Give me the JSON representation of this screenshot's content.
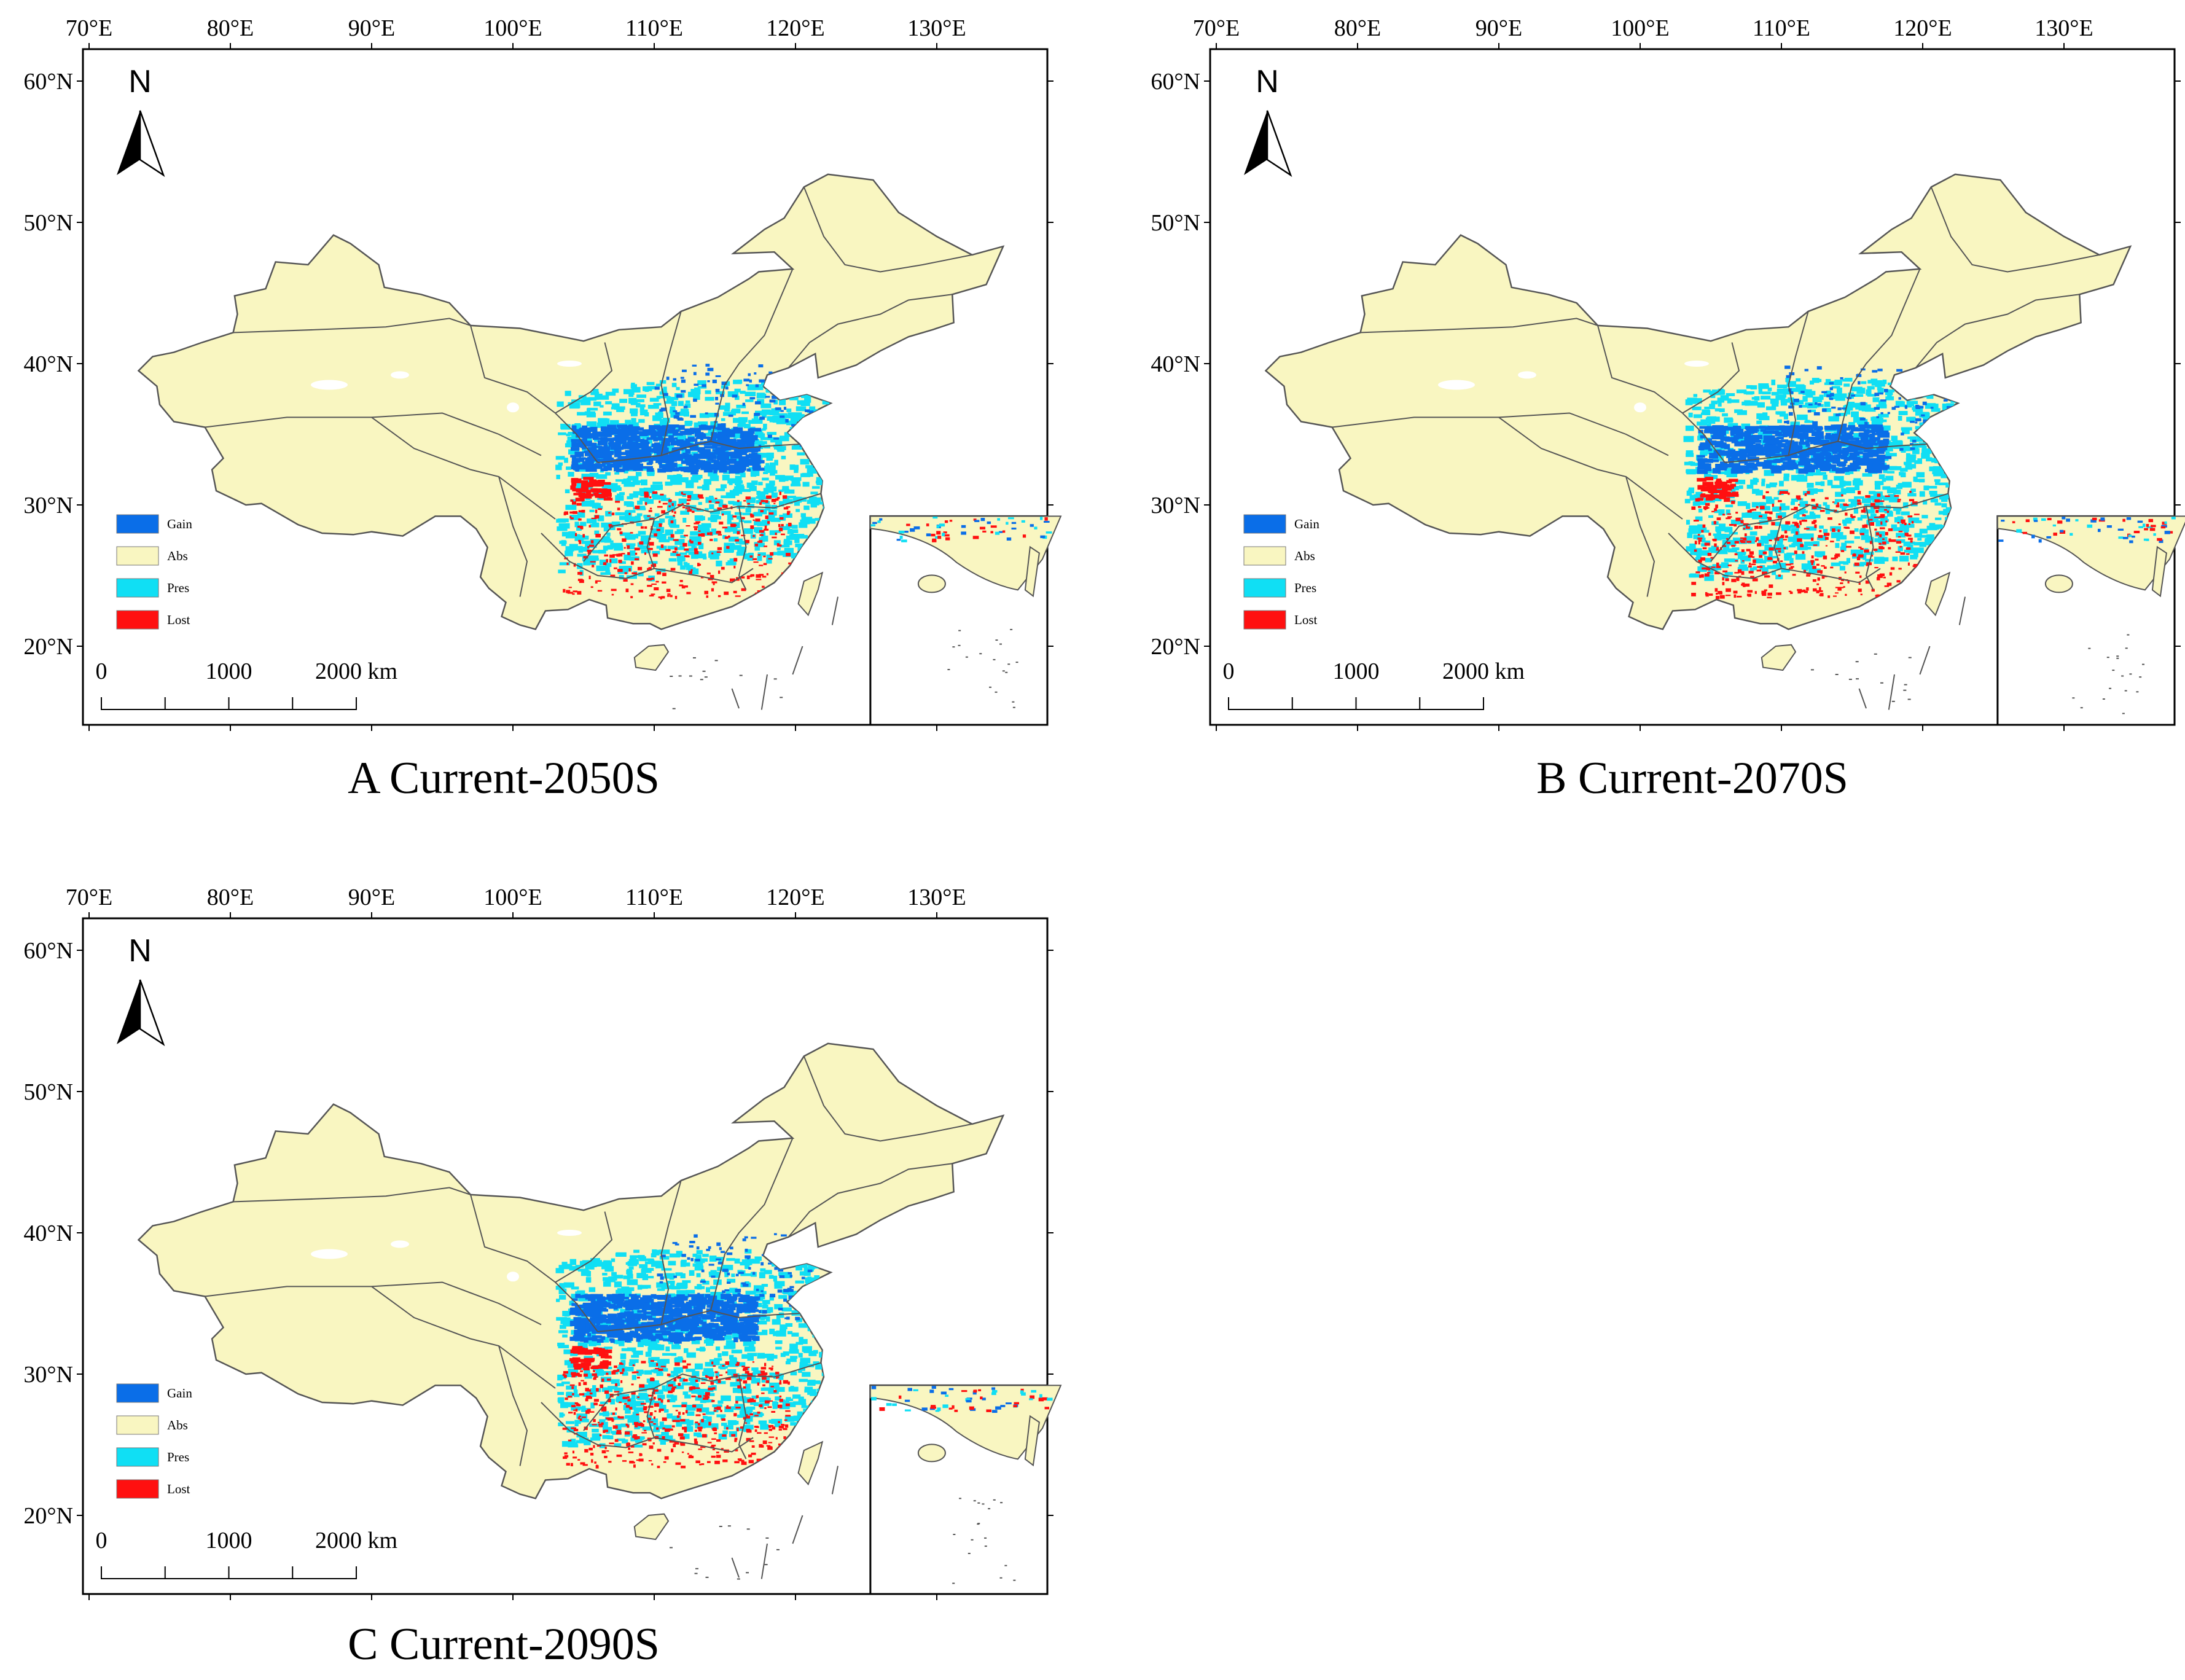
{
  "colors": {
    "gain": "#0a6ee8",
    "abs": "#f9f6c1",
    "pres": "#10dff4",
    "lost": "#ff1010",
    "border": "#555555"
  },
  "legend": [
    {
      "key": "gain",
      "label": "Gain"
    },
    {
      "key": "abs",
      "label": "Abs"
    },
    {
      "key": "pres",
      "label": "Pres"
    },
    {
      "key": "lost",
      "label": "Lost"
    }
  ],
  "axes": {
    "lon_labels": [
      "70°E",
      "80°E",
      "90°E",
      "100°E",
      "110°E",
      "120°E",
      "130°E"
    ],
    "lat_labels": [
      "60°N",
      "50°N",
      "40°N",
      "30°N",
      "20°N"
    ]
  },
  "north_label": "N",
  "scale_bar": {
    "labels": [
      "0",
      "1000",
      "2000 km"
    ]
  },
  "panels": [
    {
      "id": "A",
      "caption": "A Current-2050S"
    },
    {
      "id": "B",
      "caption": "B Current-2070S"
    },
    {
      "id": "C",
      "caption": "C Current-2090S"
    }
  ]
}
